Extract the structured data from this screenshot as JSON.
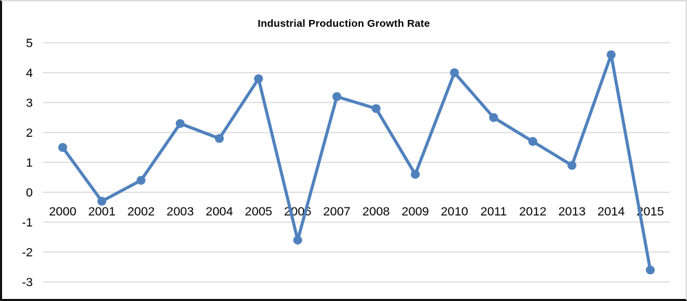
{
  "chart_data": {
    "type": "line",
    "title": "Industrial Production Growth Rate",
    "x": [
      "2000",
      "2001",
      "2002",
      "2003",
      "2004",
      "2005",
      "2006",
      "2007",
      "2008",
      "2009",
      "2010",
      "2011",
      "2012",
      "2013",
      "2014",
      "2015"
    ],
    "values": [
      1.5,
      -0.3,
      0.4,
      2.3,
      1.8,
      3.8,
      -1.6,
      3.2,
      2.8,
      0.6,
      4.0,
      2.5,
      1.7,
      0.9,
      4.6,
      -2.6
    ],
    "xlabel": "",
    "ylabel": "",
    "ylim": [
      -3,
      5
    ],
    "yticks": [
      5,
      4,
      3,
      2,
      1,
      0,
      -1,
      -2,
      -3
    ],
    "grid": true,
    "legend": false,
    "line_color": "#4f81bd",
    "marker_color": "#4f81bd",
    "grid_color": "#d9d9d9",
    "tick_label_color": "#000000"
  }
}
